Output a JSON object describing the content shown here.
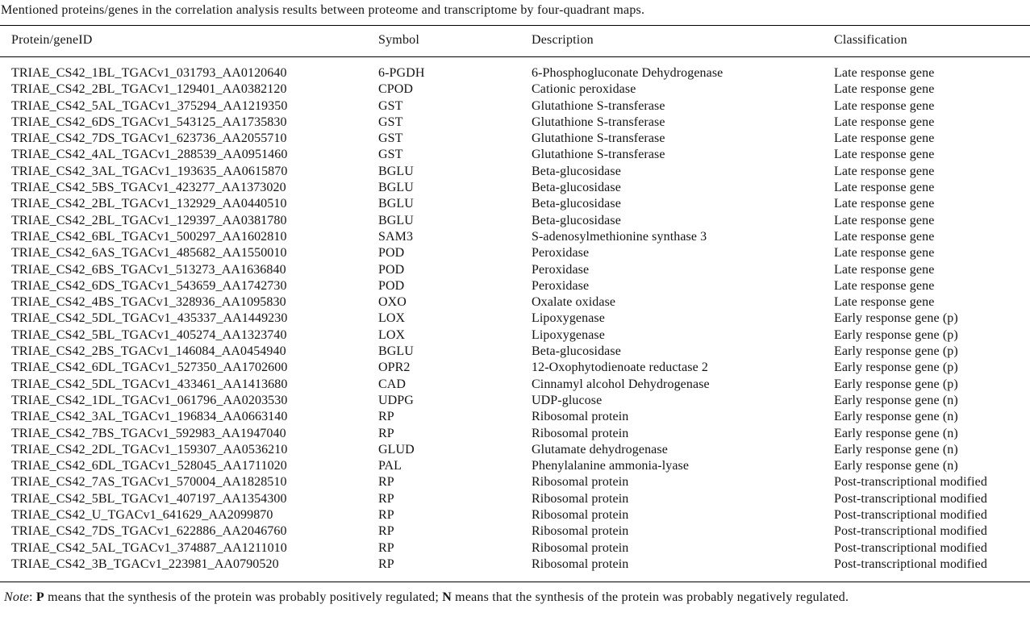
{
  "table": {
    "title": "Mentioned proteins/genes in the correlation analysis results between proteome and transcriptome by four-quadrant maps.",
    "columns": [
      "Protein/geneID",
      "Symbol",
      "Description",
      "Classification"
    ],
    "rows": [
      {
        "id": "TRIAE_CS42_1BL_TGACv1_031793_AA0120640",
        "symbol": "6-PGDH",
        "description": "6-Phosphogluconate Dehydrogenase",
        "classification": "Late response gene"
      },
      {
        "id": "TRIAE_CS42_2BL_TGACv1_129401_AA0382120",
        "symbol": "CPOD",
        "description": "Cationic peroxidase",
        "classification": "Late response gene"
      },
      {
        "id": "TRIAE_CS42_5AL_TGACv1_375294_AA1219350",
        "symbol": "GST",
        "description": "Glutathione S-transferase",
        "classification": "Late response gene"
      },
      {
        "id": "TRIAE_CS42_6DS_TGACv1_543125_AA1735830",
        "symbol": "GST",
        "description": "Glutathione S-transferase",
        "classification": "Late response gene"
      },
      {
        "id": "TRIAE_CS42_7DS_TGACv1_623736_AA2055710",
        "symbol": "GST",
        "description": "Glutathione S-transferase",
        "classification": "Late response gene"
      },
      {
        "id": "TRIAE_CS42_4AL_TGACv1_288539_AA0951460",
        "symbol": "GST",
        "description": "Glutathione S-transferase",
        "classification": "Late response gene"
      },
      {
        "id": "TRIAE_CS42_3AL_TGACv1_193635_AA0615870",
        "symbol": "BGLU",
        "description": "Beta-glucosidase",
        "classification": "Late response gene"
      },
      {
        "id": "TRIAE_CS42_5BS_TGACv1_423277_AA1373020",
        "symbol": "BGLU",
        "description": "Beta-glucosidase",
        "classification": "Late response gene"
      },
      {
        "id": "TRIAE_CS42_2BL_TGACv1_132929_AA0440510",
        "symbol": "BGLU",
        "description": "Beta-glucosidase",
        "classification": "Late response gene"
      },
      {
        "id": "TRIAE_CS42_2BL_TGACv1_129397_AA0381780",
        "symbol": "BGLU",
        "description": "Beta-glucosidase",
        "classification": "Late response gene"
      },
      {
        "id": "TRIAE_CS42_6BL_TGACv1_500297_AA1602810",
        "symbol": "SAM3",
        "description": "S-adenosylmethionine synthase 3",
        "classification": "Late response gene"
      },
      {
        "id": "TRIAE_CS42_6AS_TGACv1_485682_AA1550010",
        "symbol": "POD",
        "description": "Peroxidase",
        "classification": "Late response gene"
      },
      {
        "id": "TRIAE_CS42_6BS_TGACv1_513273_AA1636840",
        "symbol": "POD",
        "description": "Peroxidase",
        "classification": "Late response gene"
      },
      {
        "id": "TRIAE_CS42_6DS_TGACv1_543659_AA1742730",
        "symbol": "POD",
        "description": "Peroxidase",
        "classification": "Late response gene"
      },
      {
        "id": "TRIAE_CS42_4BS_TGACv1_328936_AA1095830",
        "symbol": "OXO",
        "description": "Oxalate oxidase",
        "classification": "Late response gene"
      },
      {
        "id": "TRIAE_CS42_5DL_TGACv1_435337_AA1449230",
        "symbol": "LOX",
        "description": "Lipoxygenase",
        "classification": "Early response gene (p)"
      },
      {
        "id": "TRIAE_CS42_5BL_TGACv1_405274_AA1323740",
        "symbol": "LOX",
        "description": "Lipoxygenase",
        "classification": "Early response gene (p)"
      },
      {
        "id": "TRIAE_CS42_2BS_TGACv1_146084_AA0454940",
        "symbol": "BGLU",
        "description": "Beta-glucosidase",
        "classification": "Early response gene (p)"
      },
      {
        "id": "TRIAE_CS42_6DL_TGACv1_527350_AA1702600",
        "symbol": "OPR2",
        "description": "12-Oxophytodienoate reductase 2",
        "classification": "Early response gene (p)"
      },
      {
        "id": "TRIAE_CS42_5DL_TGACv1_433461_AA1413680",
        "symbol": "CAD",
        "description": "Cinnamyl alcohol Dehydrogenase",
        "classification": "Early response gene (p)"
      },
      {
        "id": "TRIAE_CS42_1DL_TGACv1_061796_AA0203530",
        "symbol": "UDPG",
        "description": "UDP-glucose",
        "classification": "Early response gene (n)"
      },
      {
        "id": "TRIAE_CS42_3AL_TGACv1_196834_AA0663140",
        "symbol": "RP",
        "description": "Ribosomal protein",
        "classification": "Early response gene (n)"
      },
      {
        "id": "TRIAE_CS42_7BS_TGACv1_592983_AA1947040",
        "symbol": "RP",
        "description": "Ribosomal protein",
        "classification": "Early response gene (n)"
      },
      {
        "id": "TRIAE_CS42_2DL_TGACv1_159307_AA0536210",
        "symbol": "GLUD",
        "description": "Glutamate dehydrogenase",
        "classification": "Early response gene (n)"
      },
      {
        "id": "TRIAE_CS42_6DL_TGACv1_528045_AA1711020",
        "symbol": "PAL",
        "description": "Phenylalanine ammonia-lyase",
        "classification": "Early response gene (n)"
      },
      {
        "id": "TRIAE_CS42_7AS_TGACv1_570004_AA1828510",
        "symbol": "RP",
        "description": "Ribosomal protein",
        "classification": "Post-transcriptional modified"
      },
      {
        "id": "TRIAE_CS42_5BL_TGACv1_407197_AA1354300",
        "symbol": "RP",
        "description": "Ribosomal protein",
        "classification": "Post-transcriptional modified"
      },
      {
        "id": "TRIAE_CS42_U_TGACv1_641629_AA2099870",
        "symbol": "RP",
        "description": "Ribosomal protein",
        "classification": "Post-transcriptional modified"
      },
      {
        "id": "TRIAE_CS42_7DS_TGACv1_622886_AA2046760",
        "symbol": "RP",
        "description": "Ribosomal protein",
        "classification": "Post-transcriptional modified"
      },
      {
        "id": "TRIAE_CS42_5AL_TGACv1_374887_AA1211010",
        "symbol": "RP",
        "description": "Ribosomal protein",
        "classification": "Post-transcriptional modified"
      },
      {
        "id": "TRIAE_CS42_3B_TGACv1_223981_AA0790520",
        "symbol": "RP",
        "description": "Ribosomal protein",
        "classification": "Post-transcriptional modified"
      }
    ]
  },
  "note": {
    "label": "Note",
    "colon": ": ",
    "p": "P",
    "p_text": " means that the synthesis of the protein was probably positively regulated; ",
    "n": "N",
    "n_text": " means that the synthesis of the protein was probably negatively regulated."
  },
  "colors": {
    "text": "#141414",
    "background": "#ffffff",
    "rule": "#000000"
  }
}
